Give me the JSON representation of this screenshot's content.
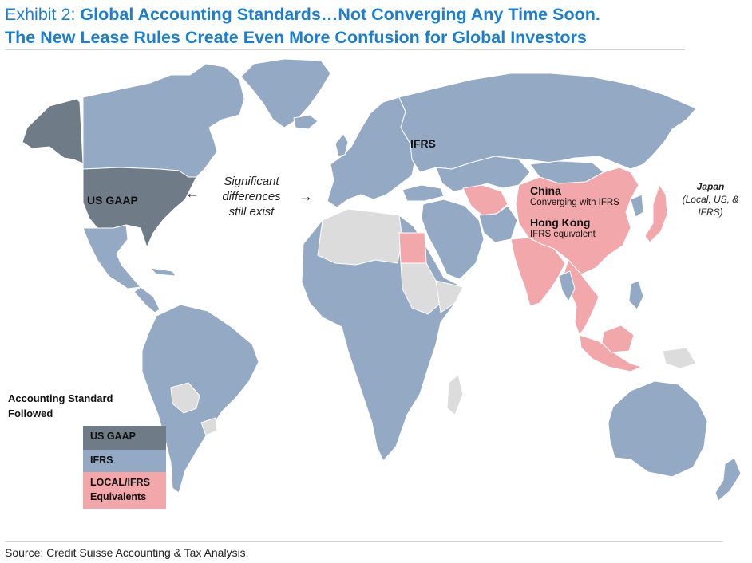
{
  "title": {
    "lead": "Exhibit 2: ",
    "line1": "Global Accounting Standards…Not Converging Any Time Soon.",
    "line2": "The New Lease Rules Create Even More Confusion for Global Investors"
  },
  "colors": {
    "us_gaap": "#6f7b87",
    "ifrs": "#93a9c4",
    "local_ifrs": "#f2a7ab",
    "other": "#dcdcdc",
    "title": "#1a7fd0"
  },
  "labels": {
    "us_gaap": "US GAAP",
    "ifrs": "IFRS",
    "significant_1": "Significant",
    "significant_2": "differences",
    "significant_3": "still exist",
    "arrow_left": "←",
    "arrow_right": "→",
    "china": "China",
    "china_sub": "Converging with IFRS",
    "hongkong": "Hong Kong",
    "hongkong_sub": "IFRS equivalent",
    "japan": "Japan",
    "japan_sub1": "(Local, US, &",
    "japan_sub2": "IFRS)"
  },
  "legend": {
    "title_1": "Accounting Standard",
    "title_2": "Followed",
    "items": [
      {
        "label": "US GAAP"
      },
      {
        "label": "IFRS"
      },
      {
        "label_1": "LOCAL/IFRS",
        "label_2": "Equivalents"
      }
    ]
  },
  "source": "Source: Credit Suisse Accounting & Tax Analysis."
}
